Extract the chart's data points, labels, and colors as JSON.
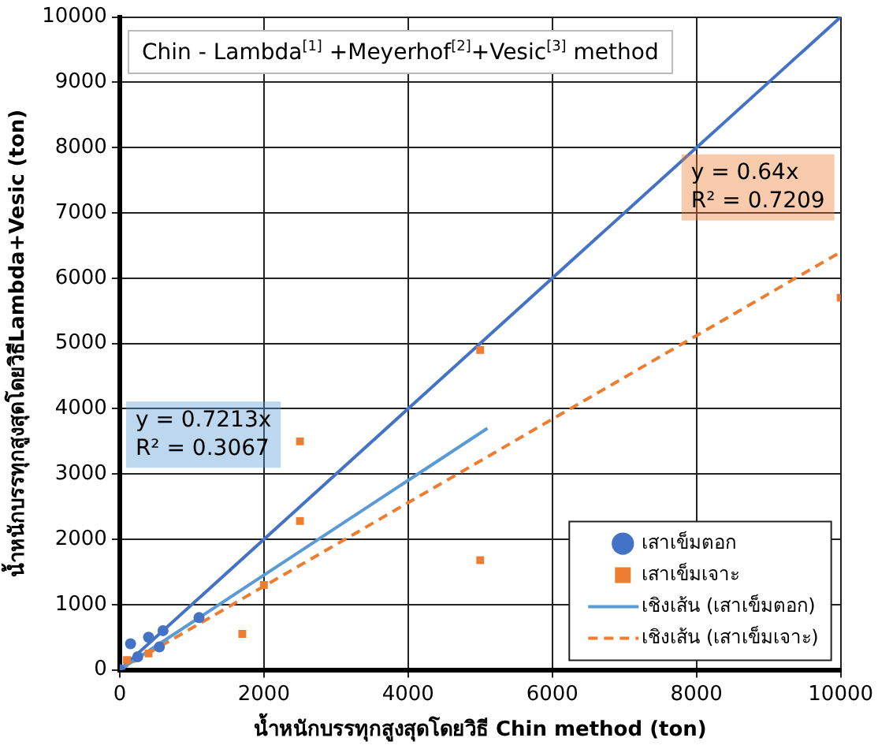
{
  "chart_data": {
    "type": "scatter",
    "title": "Chin - Lambda$^{[1]}$ +Meyerhof$^{[2]}$+Vesic$^{[3]}$ method",
    "xlabel": "น้ำหนักบรรทุกสูงสุดโดยวิธี Chin method (ton)",
    "ylabel": "น้ำหนักบรรทุกสูงสุดโดยวิธีLambda+Vesic (ton)",
    "xlim": [
      0,
      10000
    ],
    "xticks": [
      0,
      2000,
      4000,
      6000,
      8000,
      10000
    ],
    "ylim": [
      0,
      10000
    ],
    "yticks": [
      0,
      1000,
      2000,
      3000,
      4000,
      5000,
      6000,
      7000,
      8000,
      9000,
      10000
    ],
    "grid": true,
    "legend": "bottom right",
    "series": [
      {
        "name": "เสาเข็มตอก",
        "marker": "circle",
        "color": "#4472c4",
        "x": [
          0,
          150,
          250,
          400,
          550,
          600,
          1100
        ],
        "values": [
          0,
          400,
          200,
          500,
          350,
          600,
          800
        ]
      },
      {
        "name": "เสาเข็มเจาะ",
        "marker": "square",
        "color": "#ed7d31",
        "x": [
          100,
          400,
          1700,
          2000,
          2500,
          2500,
          5000,
          5000,
          10000
        ],
        "values": [
          150,
          250,
          550,
          1300,
          2280,
          3500,
          4900,
          1680,
          5700
        ]
      },
      {
        "name": "เชิงเส้น (เสาเข็มตอก)",
        "type": "line",
        "line_style": "solid",
        "color": "#5b9bd5",
        "x": [
          0,
          5100
        ],
        "values": [
          0,
          3700
        ]
      },
      {
        "name": "เชิงเส้น (เสาเข็มเจาะ)",
        "type": "line",
        "line_style": "dashed",
        "color": "#ed7d31",
        "x": [
          0,
          10000
        ],
        "values": [
          0,
          6400
        ]
      },
      {
        "type": "line",
        "line_style": "solid",
        "color": "#4472c4",
        "x": [
          0,
          10000
        ],
        "values": [
          0,
          10000
        ]
      }
    ],
    "annotations": [
      "y = 0.7213x\nR² = 0.3067",
      "y = 0.64x\nR² = 0.7209"
    ]
  }
}
